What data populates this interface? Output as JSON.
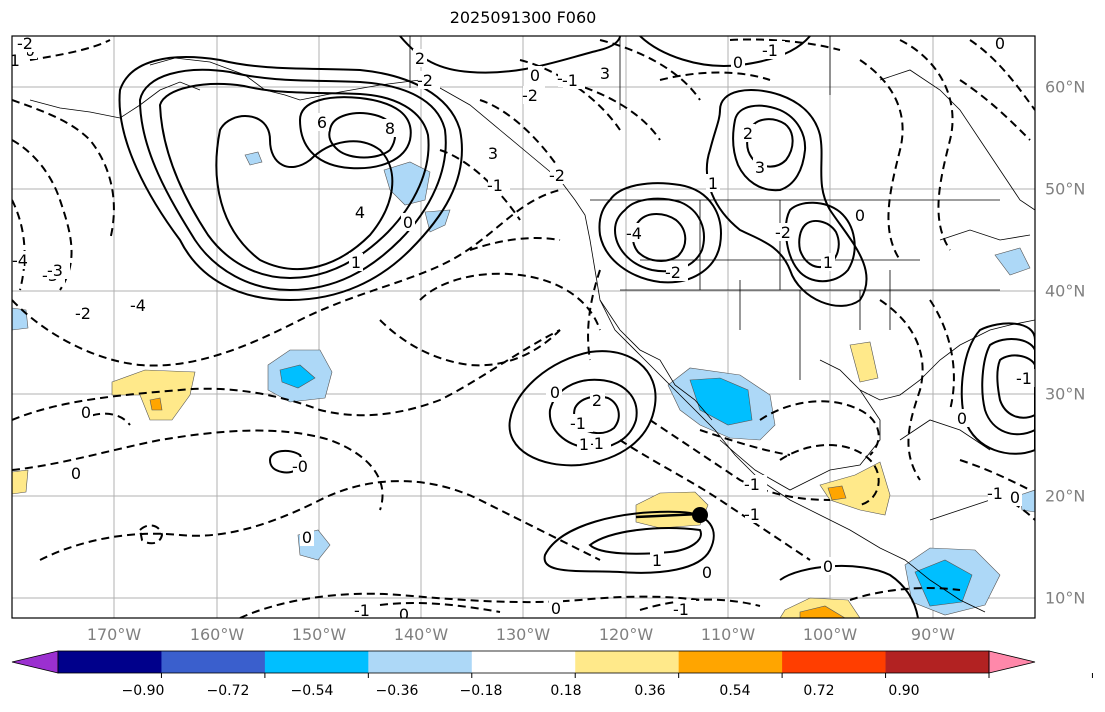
{
  "title": "2025091300 F060",
  "lon_labels": [
    "170°W",
    "160°W",
    "150°W",
    "140°W",
    "130°W",
    "120°W",
    "110°W",
    "100°W",
    "90°W"
  ],
  "lat_labels": [
    "60°N",
    "50°N",
    "40°N",
    "30°N",
    "20°N",
    "10°N"
  ],
  "contour_labels": [
    "0",
    "-1",
    "-1",
    "2",
    "-2",
    "-2",
    "-1",
    "0",
    "3",
    "6",
    "8",
    "4",
    "1",
    "0",
    "-3",
    "-4",
    "-4",
    "-2",
    "-1",
    "3",
    "2",
    "3",
    "1",
    "1",
    "-2",
    "-3",
    "-4",
    "-2",
    "2",
    "-1",
    "-1",
    "0",
    "0",
    "-3",
    "0",
    "-2",
    "-2",
    "0",
    "-1",
    "-0",
    "0",
    "2",
    "1",
    "0",
    "-1",
    "-1",
    "1",
    "0",
    "0",
    "0",
    "-1",
    "-1",
    "0",
    "-1",
    "0",
    "-1",
    "0",
    "0",
    "0"
  ],
  "colorbar": {
    "tick_labels": [
      "−0.90",
      "−0.72",
      "−0.54",
      "−0.36",
      "−0.18",
      "0.18",
      "0.36",
      "0.54",
      "0.72",
      "0.90"
    ],
    "colors": [
      "#9b30d0",
      "#00008b",
      "#3a5fcd",
      "#00bfff",
      "#add8f7",
      "#ffffff",
      "#ffe98a",
      "#ffa500",
      "#ff3e00",
      "#b22222",
      "#ff88aa"
    ]
  },
  "marker": {
    "name": "station-dot"
  }
}
